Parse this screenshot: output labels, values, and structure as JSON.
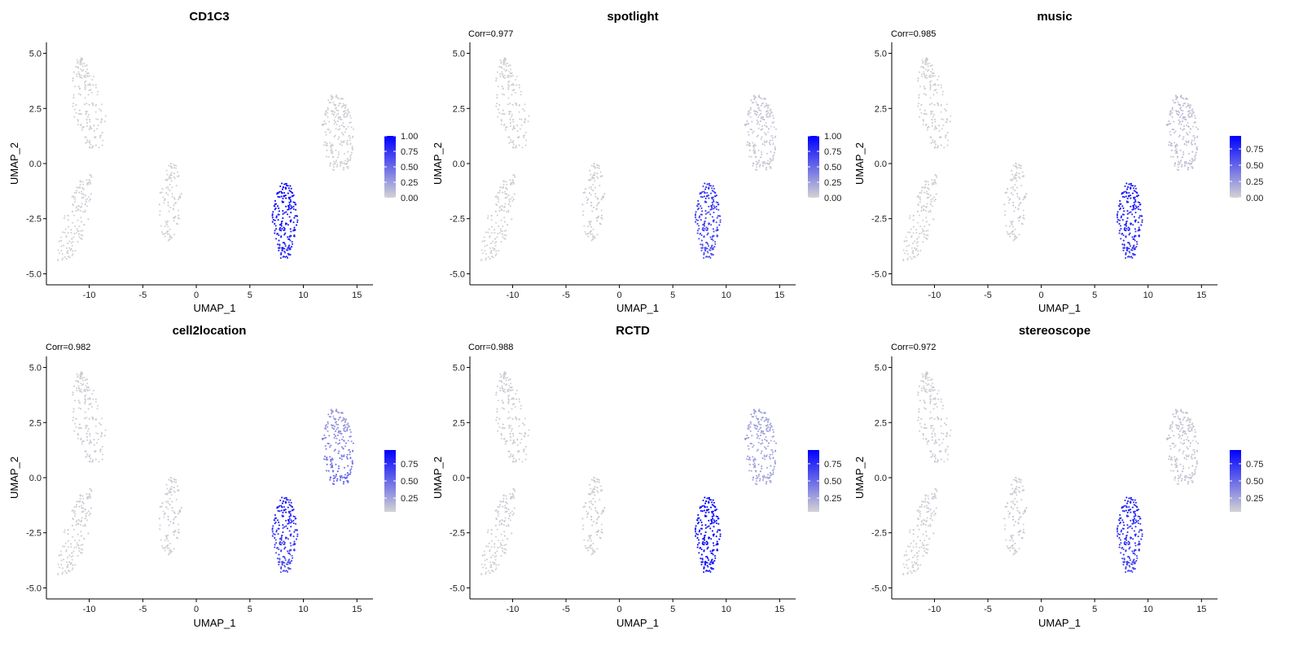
{
  "palette": {
    "low": "#d3d3d3",
    "high": "#0000ff"
  },
  "chart_data": [
    {
      "type": "scatter",
      "title": "CD1C3",
      "annotation": "",
      "xlabel": "UMAP_1",
      "ylabel": "UMAP_2",
      "xlim": [
        -14,
        16.5
      ],
      "ylim": [
        -5.5,
        5.5
      ],
      "xticks": [
        -10,
        -5,
        0,
        5,
        10,
        15
      ],
      "yticks": [
        -5.0,
        -2.5,
        0.0,
        2.5,
        5.0
      ],
      "xtick_labels": [
        "-10",
        "-5",
        "0",
        "5",
        "10",
        "15"
      ],
      "ytick_labels": [
        "-5.0",
        "-2.5",
        "0.0",
        "2.5",
        "5.0"
      ],
      "legend": {
        "min": 0,
        "max": 1.0,
        "ticks": [
          0,
          0.25,
          0.5,
          0.75,
          1.0
        ],
        "tick_labels": [
          "0.00",
          "0.25",
          "0.50",
          "0.75",
          "1.00"
        ]
      },
      "clusters": {
        "A": {
          "cx": -10.3,
          "cy": 3.2,
          "n": 170,
          "value": 0.0
        },
        "B": {
          "cx": -11.3,
          "cy": -2.6,
          "n": 140,
          "value": 0.0
        },
        "C": {
          "cx": -2.4,
          "cy": -1.7,
          "n": 110,
          "value": 0.0
        },
        "D": {
          "cx": 8.3,
          "cy": -2.2,
          "n": 210,
          "value": 1.0,
          "bottom_value": 0.8
        },
        "E": {
          "cx": 13.2,
          "cy": 1.7,
          "n": 210,
          "value": 0.0
        }
      }
    },
    {
      "type": "scatter",
      "title": "spotlight",
      "annotation": "Corr=0.977",
      "xlabel": "UMAP_1",
      "ylabel": "UMAP_2",
      "xlim": [
        -14,
        16.5
      ],
      "ylim": [
        -5.5,
        5.5
      ],
      "xticks": [
        -10,
        -5,
        0,
        5,
        10,
        15
      ],
      "yticks": [
        -5.0,
        -2.5,
        0.0,
        2.5,
        5.0
      ],
      "xtick_labels": [
        "-10",
        "-5",
        "0",
        "5",
        "10",
        "15"
      ],
      "ytick_labels": [
        "-5.0",
        "-2.5",
        "0.0",
        "2.5",
        "5.0"
      ],
      "legend": {
        "min": 0,
        "max": 1.0,
        "ticks": [
          0,
          0.25,
          0.5,
          0.75,
          1.0
        ],
        "tick_labels": [
          "0.00",
          "0.25",
          "0.50",
          "0.75",
          "1.00"
        ]
      },
      "clusters": {
        "A": {
          "cx": -10.3,
          "cy": 3.2,
          "n": 170,
          "value": 0.0
        },
        "B": {
          "cx": -11.3,
          "cy": -2.6,
          "n": 140,
          "value": 0.0
        },
        "C": {
          "cx": -2.4,
          "cy": -1.7,
          "n": 110,
          "value": 0.02
        },
        "D": {
          "cx": 8.3,
          "cy": -2.2,
          "n": 210,
          "value": 0.75,
          "bottom_value": 0.6
        },
        "E": {
          "cx": 13.2,
          "cy": 1.7,
          "n": 210,
          "value": 0.05
        }
      }
    },
    {
      "type": "scatter",
      "title": "music",
      "annotation": "Corr=0.985",
      "xlabel": "UMAP_1",
      "ylabel": "UMAP_2",
      "xlim": [
        -14,
        16.5
      ],
      "ylim": [
        -5.5,
        5.5
      ],
      "xticks": [
        -10,
        -5,
        0,
        5,
        10,
        15
      ],
      "yticks": [
        -5.0,
        -2.5,
        0.0,
        2.5,
        5.0
      ],
      "xtick_labels": [
        "-10",
        "-5",
        "0",
        "5",
        "10",
        "15"
      ],
      "ytick_labels": [
        "-5.0",
        "-2.5",
        "0.0",
        "2.5",
        "5.0"
      ],
      "legend": {
        "min": 0,
        "max": 0.95,
        "ticks": [
          0,
          0.25,
          0.5,
          0.75
        ],
        "tick_labels": [
          "0.00",
          "0.25",
          "0.50",
          "0.75"
        ]
      },
      "clusters": {
        "A": {
          "cx": -10.3,
          "cy": 3.2,
          "n": 170,
          "value": 0.0
        },
        "B": {
          "cx": -11.3,
          "cy": -2.6,
          "n": 140,
          "value": 0.0
        },
        "C": {
          "cx": -2.4,
          "cy": -1.7,
          "n": 110,
          "value": 0.02
        },
        "D": {
          "cx": 8.3,
          "cy": -2.2,
          "n": 210,
          "value": 0.85,
          "bottom_value": 0.7
        },
        "E": {
          "cx": 13.2,
          "cy": 1.7,
          "n": 210,
          "value": 0.08
        }
      }
    },
    {
      "type": "scatter",
      "title": "cell2location",
      "annotation": "Corr=0.982",
      "xlabel": "UMAP_1",
      "ylabel": "UMAP_2",
      "xlim": [
        -14,
        16.5
      ],
      "ylim": [
        -5.5,
        5.5
      ],
      "xticks": [
        -10,
        -5,
        0,
        5,
        10,
        15
      ],
      "yticks": [
        -5.0,
        -2.5,
        0.0,
        2.5,
        5.0
      ],
      "xtick_labels": [
        "-10",
        "-5",
        "0",
        "5",
        "10",
        "15"
      ],
      "ytick_labels": [
        "-5.0",
        "-2.5",
        "0.0",
        "2.5",
        "5.0"
      ],
      "legend": {
        "min": 0.05,
        "max": 0.95,
        "ticks": [
          0.25,
          0.5,
          0.75
        ],
        "tick_labels": [
          "0.25",
          "0.50",
          "0.75"
        ]
      },
      "clusters": {
        "A": {
          "cx": -10.3,
          "cy": 3.2,
          "n": 170,
          "value": 0.06
        },
        "B": {
          "cx": -11.3,
          "cy": -2.6,
          "n": 140,
          "value": 0.06
        },
        "C": {
          "cx": -2.4,
          "cy": -1.7,
          "n": 110,
          "value": 0.07
        },
        "D": {
          "cx": 8.3,
          "cy": -2.2,
          "n": 210,
          "value": 0.82,
          "bottom_value": 0.6
        },
        "E": {
          "cx": 13.2,
          "cy": 1.7,
          "n": 210,
          "value": 0.3,
          "bottom_value": 0.55
        }
      }
    },
    {
      "type": "scatter",
      "title": "RCTD",
      "annotation": "Corr=0.988",
      "xlabel": "UMAP_1",
      "ylabel": "UMAP_2",
      "xlim": [
        -14,
        16.5
      ],
      "ylim": [
        -5.5,
        5.5
      ],
      "xticks": [
        -10,
        -5,
        0,
        5,
        10,
        15
      ],
      "yticks": [
        -5.0,
        -2.5,
        0.0,
        2.5,
        5.0
      ],
      "xtick_labels": [
        "-10",
        "-5",
        "0",
        "5",
        "10",
        "15"
      ],
      "ytick_labels": [
        "-5.0",
        "-2.5",
        "0.0",
        "2.5",
        "5.0"
      ],
      "legend": {
        "min": 0.05,
        "max": 0.95,
        "ticks": [
          0.25,
          0.5,
          0.75
        ],
        "tick_labels": [
          "0.25",
          "0.50",
          "0.75"
        ]
      },
      "clusters": {
        "A": {
          "cx": -10.3,
          "cy": 3.2,
          "n": 170,
          "value": 0.06
        },
        "B": {
          "cx": -11.3,
          "cy": -2.6,
          "n": 140,
          "value": 0.06
        },
        "C": {
          "cx": -2.4,
          "cy": -1.7,
          "n": 110,
          "value": 0.07
        },
        "D": {
          "cx": 8.3,
          "cy": -2.2,
          "n": 210,
          "value": 0.95,
          "bottom_value": 0.85
        },
        "E": {
          "cx": 13.2,
          "cy": 1.7,
          "n": 210,
          "value": 0.25
        }
      }
    },
    {
      "type": "scatter",
      "title": "stereoscope",
      "annotation": "Corr=0.972",
      "xlabel": "UMAP_1",
      "ylabel": "UMAP_2",
      "xlim": [
        -14,
        16.5
      ],
      "ylim": [
        -5.5,
        5.5
      ],
      "xticks": [
        -10,
        -5,
        0,
        5,
        10,
        15
      ],
      "yticks": [
        -5.0,
        -2.5,
        0.0,
        2.5,
        5.0
      ],
      "xtick_labels": [
        "-10",
        "-5",
        "0",
        "5",
        "10",
        "15"
      ],
      "ytick_labels": [
        "-5.0",
        "-2.5",
        "0.0",
        "2.5",
        "5.0"
      ],
      "legend": {
        "min": 0.05,
        "max": 0.95,
        "ticks": [
          0.25,
          0.5,
          0.75
        ],
        "tick_labels": [
          "0.25",
          "0.50",
          "0.75"
        ]
      },
      "clusters": {
        "A": {
          "cx": -10.3,
          "cy": 3.2,
          "n": 170,
          "value": 0.06
        },
        "B": {
          "cx": -11.3,
          "cy": -2.6,
          "n": 140,
          "value": 0.06
        },
        "C": {
          "cx": -2.4,
          "cy": -1.7,
          "n": 110,
          "value": 0.08
        },
        "D": {
          "cx": 8.3,
          "cy": -2.2,
          "n": 210,
          "value": 0.8,
          "bottom_value": 0.65
        },
        "E": {
          "cx": 13.2,
          "cy": 1.7,
          "n": 210,
          "value": 0.1
        }
      }
    }
  ]
}
